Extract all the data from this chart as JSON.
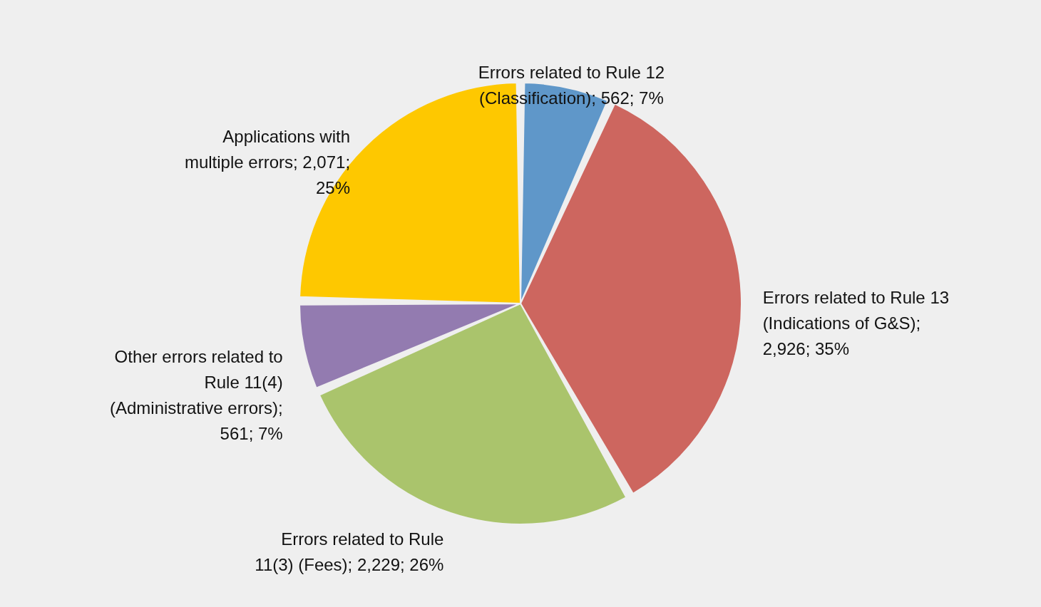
{
  "chart_data": {
    "type": "pie",
    "categories": [
      "Errors related to Rule 12 (Classification); 562; 7%",
      "Errors related to Rule 13 (Indications of G&S); 2,926; 35%",
      "Errors related to Rule 11(3) (Fees); 2,229; 26%",
      "Other errors related to Rule 11(4) (Administrative errors); 561; 7%",
      "Applications with multiple errors; 2,071; 25%"
    ],
    "values": [
      562,
      2926,
      2229,
      561,
      2071
    ],
    "colors": [
      "#5f97c9",
      "#cd665f",
      "#aac46c",
      "#937bb0",
      "#fec800"
    ]
  }
}
